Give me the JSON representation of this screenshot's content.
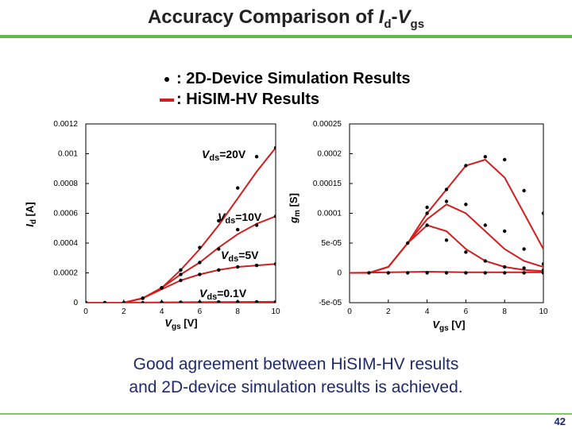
{
  "slide": {
    "title_prefix": "Accuracy Comparison of ",
    "title_var1": "I",
    "title_sub1": "d",
    "title_dash": "-",
    "title_var2": "V",
    "title_sub2": "gs",
    "legend": [
      {
        "symbol": "dot",
        "text": ": 2D-Device Simulation Results"
      },
      {
        "symbol": "line",
        "text": ": HiSIM-HV Results"
      }
    ],
    "note_line1": "Good agreement between HiSIM-HV results",
    "note_line2": "and 2D-device simulation results is achieved.",
    "page_number": "42"
  },
  "colors": {
    "accent_rule": "#5fba46",
    "model_line": "#d01f1f",
    "note_text": "#1f2a6b",
    "points": "#000000"
  },
  "chart_data": [
    {
      "type": "line",
      "id": "id-vgs",
      "xlabel": "Vgs [V]",
      "ylabel": "Id [A]",
      "xlim": [
        0,
        10
      ],
      "ylim": [
        0,
        0.0012
      ],
      "xticks": [
        0,
        2,
        4,
        6,
        8,
        10
      ],
      "xtick_labels": [
        "0",
        "2",
        "4",
        "6",
        "8",
        "10"
      ],
      "yticks": [
        0,
        0.0002,
        0.0004,
        0.0006,
        0.0008,
        0.001,
        0.0012
      ],
      "ytick_labels": [
        "0",
        "0.0002",
        "0.0004",
        "0.0006",
        "0.0008",
        "0.001",
        "0.0012"
      ],
      "grid": false,
      "series": [
        {
          "name": "Vds=20V",
          "model": {
            "x": [
              0,
              1,
              2,
              3,
              4,
              5,
              6,
              7,
              8,
              9,
              10
            ],
            "y": [
              0,
              0,
              0,
              3e-05,
              0.0001,
              0.00022,
              0.00036,
              0.00052,
              0.0007,
              0.00088,
              0.00104
            ]
          },
          "points": {
            "x": [
              0,
              1,
              2,
              3,
              4,
              5,
              6,
              7,
              8,
              9,
              10
            ],
            "y": [
              0,
              0,
              0,
              3e-05,
              0.0001,
              0.00022,
              0.00037,
              0.00055,
              0.00077,
              0.00098,
              0.00104
            ]
          }
        },
        {
          "name": "Vds=10V",
          "model": {
            "x": [
              0,
              1,
              2,
              3,
              4,
              5,
              6,
              7,
              8,
              9,
              10
            ],
            "y": [
              0,
              0,
              0,
              3e-05,
              0.0001,
              0.00019,
              0.00027,
              0.00037,
              0.00046,
              0.00053,
              0.00058
            ]
          },
          "points": {
            "x": [
              3,
              4,
              5,
              6,
              7,
              8,
              9,
              10
            ],
            "y": [
              3e-05,
              0.0001,
              0.00019,
              0.00027,
              0.00036,
              0.00049,
              0.00052,
              0.00058
            ]
          }
        },
        {
          "name": "Vds=5V",
          "model": {
            "x": [
              0,
              1,
              2,
              3,
              4,
              5,
              6,
              7,
              8,
              9,
              10
            ],
            "y": [
              0,
              0,
              0,
              3e-05,
              9e-05,
              0.00015,
              0.00019,
              0.00022,
              0.00024,
              0.00025,
              0.00026
            ]
          },
          "points": {
            "x": [
              3,
              4,
              5,
              6,
              7,
              8,
              9,
              10
            ],
            "y": [
              3e-05,
              0.0001,
              0.00015,
              0.00019,
              0.00022,
              0.00024,
              0.00025,
              0.00026
            ]
          }
        },
        {
          "name": "Vds=0.1V",
          "model": {
            "x": [
              0,
              2,
              4,
              6,
              8,
              10
            ],
            "y": [
              0,
              0,
              2e-06,
              4e-06,
              5e-06,
              6e-06
            ]
          },
          "points": {
            "x": [
              0,
              1,
              2,
              3,
              4,
              5,
              6,
              7,
              8,
              9,
              10
            ],
            "y": [
              0,
              0,
              0,
              0,
              2e-06,
              3e-06,
              4e-06,
              5e-06,
              5e-06,
              6e-06,
              6e-06
            ]
          }
        }
      ],
      "annotations": [
        {
          "base": "V",
          "sub": "ds",
          "suffix": "=20V",
          "series": "Vds=20V"
        },
        {
          "base": "V",
          "sub": "ds",
          "suffix": "=10V",
          "series": "Vds=10V"
        },
        {
          "base": "V",
          "sub": "ds",
          "suffix": "=5V",
          "series": "Vds=5V"
        },
        {
          "base": "V",
          "sub": "ds",
          "suffix": "=0.1V",
          "series": "Vds=0.1V"
        }
      ]
    },
    {
      "type": "line",
      "id": "gm-vgs",
      "xlabel": "Vgs [V]",
      "ylabel": "gm [S]",
      "xlim": [
        0,
        10
      ],
      "ylim": [
        -5e-05,
        0.00025
      ],
      "xticks": [
        0,
        2,
        4,
        6,
        8,
        10
      ],
      "xtick_labels": [
        "0",
        "2",
        "4",
        "6",
        "8",
        "10"
      ],
      "yticks": [
        -5e-05,
        0,
        5e-05,
        0.0001,
        0.00015,
        0.0002,
        0.00025
      ],
      "ytick_labels": [
        "-5e-05",
        "0",
        "5e-05",
        "0.0001",
        "0.00015",
        "0.0002",
        "0.00025"
      ],
      "grid": false,
      "series": [
        {
          "name": "Vds=20V",
          "model": {
            "x": [
              0,
              1,
              2,
              3,
              4,
              5,
              6,
              7,
              8,
              9,
              10
            ],
            "y": [
              0,
              0,
              1e-05,
              5e-05,
              0.0001,
              0.00014,
              0.00018,
              0.00019,
              0.00016,
              0.0001,
              4e-05
            ]
          },
          "points": {
            "x": [
              4,
              5,
              6,
              7,
              8,
              9,
              10
            ],
            "y": [
              0.0001,
              0.00014,
              0.00018,
              0.000195,
              0.00019,
              0.000138,
              0.0001
            ]
          }
        },
        {
          "name": "Vds=10V",
          "model": {
            "x": [
              0,
              1,
              2,
              3,
              4,
              5,
              6,
              7,
              8,
              9,
              10
            ],
            "y": [
              0,
              0,
              1e-05,
              5e-05,
              9e-05,
              0.000115,
              0.0001,
              7e-05,
              4e-05,
              2e-05,
              1e-05
            ]
          },
          "points": {
            "x": [
              4,
              5,
              6,
              7,
              8,
              9,
              10
            ],
            "y": [
              0.00011,
              0.00012,
              0.000115,
              8e-05,
              7e-05,
              4e-05,
              1.5e-05
            ]
          }
        },
        {
          "name": "Vds=5V",
          "model": {
            "x": [
              0,
              1,
              2,
              3,
              4,
              5,
              6,
              7,
              8,
              9,
              10
            ],
            "y": [
              0,
              0,
              1e-05,
              5e-05,
              8e-05,
              7e-05,
              4e-05,
              2e-05,
              1e-05,
              5e-06,
              3e-06
            ]
          },
          "points": {
            "x": [
              3,
              4,
              5,
              6,
              7,
              8,
              9,
              10
            ],
            "y": [
              5e-05,
              8e-05,
              5.5e-05,
              3.5e-05,
              2e-05,
              1e-05,
              8e-06,
              5e-06
            ]
          }
        },
        {
          "name": "Vds=0.1V",
          "model": {
            "x": [
              0,
              2,
              4,
              6,
              8,
              10
            ],
            "y": [
              0,
              1e-06,
              2e-06,
              1e-06,
              1e-06,
              1e-06
            ]
          },
          "points": {
            "x": [
              1,
              2,
              3,
              4,
              5,
              6,
              7,
              8,
              9,
              10
            ],
            "y": [
              0,
              0,
              0,
              0,
              0,
              0,
              0,
              0,
              0,
              0
            ]
          }
        }
      ]
    }
  ]
}
